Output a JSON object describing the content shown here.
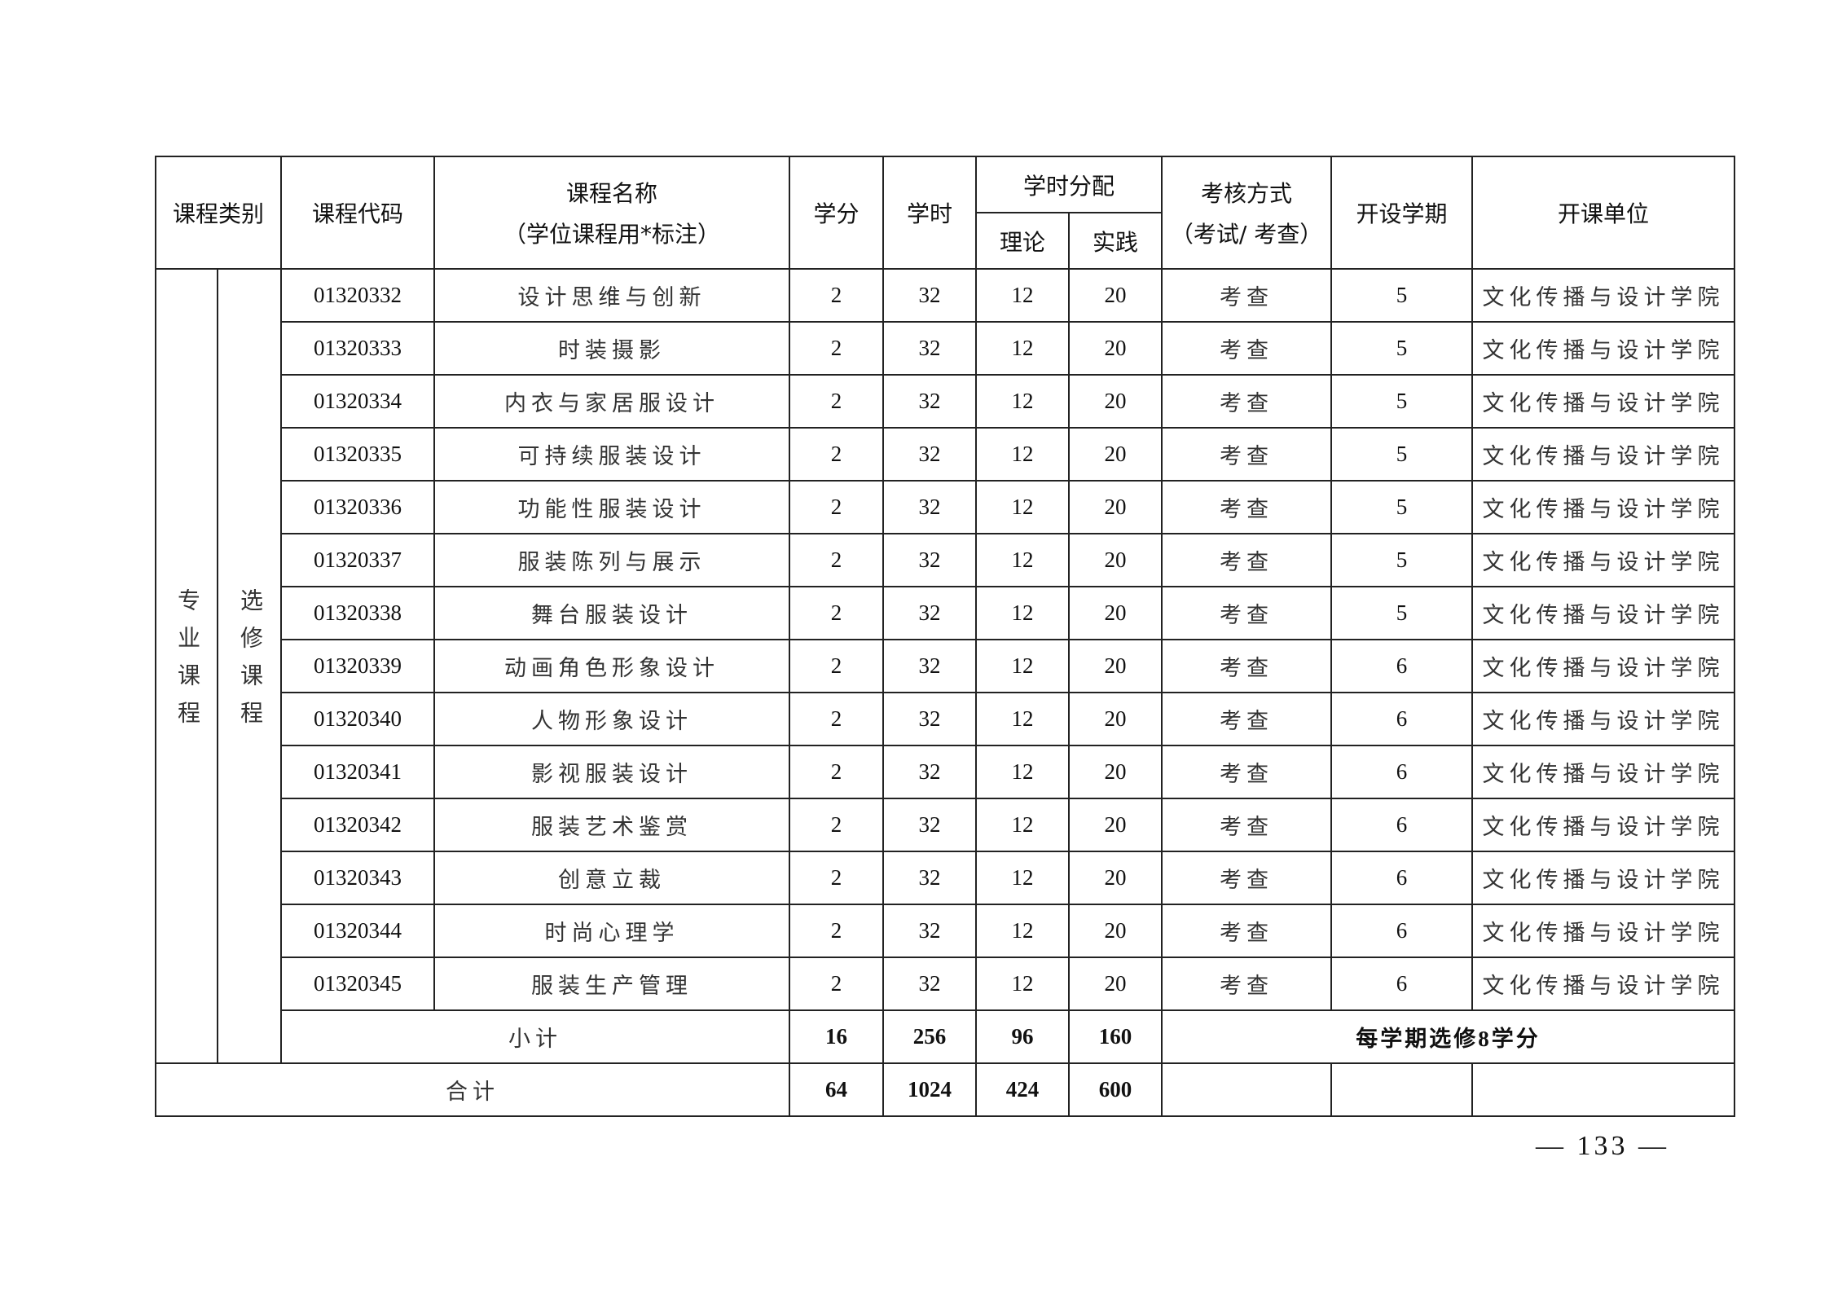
{
  "header": {
    "category": "课程类别",
    "code": "课程代码",
    "name_line1": "课程名称",
    "name_line2": "（学位课程用*标注）",
    "credits": "学分",
    "hours": "学时",
    "hours_split": "学时分配",
    "theory": "理论",
    "practice": "实践",
    "exam_line1": "考核方式",
    "exam_line2": "（考试/ 考查）",
    "semester": "开设学期",
    "unit": "开课单位"
  },
  "category": {
    "main": "专业课程",
    "sub": "选修课程"
  },
  "rows": [
    {
      "code": "01320332",
      "name": "设计思维与创新",
      "credits": "2",
      "hours": "32",
      "theory": "12",
      "practice": "20",
      "exam": "考查",
      "semester": "5",
      "unit": "文化传播与设计学院"
    },
    {
      "code": "01320333",
      "name": "时装摄影",
      "credits": "2",
      "hours": "32",
      "theory": "12",
      "practice": "20",
      "exam": "考查",
      "semester": "5",
      "unit": "文化传播与设计学院"
    },
    {
      "code": "01320334",
      "name": "内衣与家居服设计",
      "credits": "2",
      "hours": "32",
      "theory": "12",
      "practice": "20",
      "exam": "考查",
      "semester": "5",
      "unit": "文化传播与设计学院"
    },
    {
      "code": "01320335",
      "name": "可持续服装设计",
      "credits": "2",
      "hours": "32",
      "theory": "12",
      "practice": "20",
      "exam": "考查",
      "semester": "5",
      "unit": "文化传播与设计学院"
    },
    {
      "code": "01320336",
      "name": "功能性服装设计",
      "credits": "2",
      "hours": "32",
      "theory": "12",
      "practice": "20",
      "exam": "考查",
      "semester": "5",
      "unit": "文化传播与设计学院"
    },
    {
      "code": "01320337",
      "name": "服装陈列与展示",
      "credits": "2",
      "hours": "32",
      "theory": "12",
      "practice": "20",
      "exam": "考查",
      "semester": "5",
      "unit": "文化传播与设计学院"
    },
    {
      "code": "01320338",
      "name": "舞台服装设计",
      "credits": "2",
      "hours": "32",
      "theory": "12",
      "practice": "20",
      "exam": "考查",
      "semester": "5",
      "unit": "文化传播与设计学院"
    },
    {
      "code": "01320339",
      "name": "动画角色形象设计",
      "credits": "2",
      "hours": "32",
      "theory": "12",
      "practice": "20",
      "exam": "考查",
      "semester": "6",
      "unit": "文化传播与设计学院"
    },
    {
      "code": "01320340",
      "name": "人物形象设计",
      "credits": "2",
      "hours": "32",
      "theory": "12",
      "practice": "20",
      "exam": "考查",
      "semester": "6",
      "unit": "文化传播与设计学院"
    },
    {
      "code": "01320341",
      "name": "影视服装设计",
      "credits": "2",
      "hours": "32",
      "theory": "12",
      "practice": "20",
      "exam": "考查",
      "semester": "6",
      "unit": "文化传播与设计学院"
    },
    {
      "code": "01320342",
      "name": "服装艺术鉴赏",
      "credits": "2",
      "hours": "32",
      "theory": "12",
      "practice": "20",
      "exam": "考查",
      "semester": "6",
      "unit": "文化传播与设计学院"
    },
    {
      "code": "01320343",
      "name": "创意立裁",
      "credits": "2",
      "hours": "32",
      "theory": "12",
      "practice": "20",
      "exam": "考查",
      "semester": "6",
      "unit": "文化传播与设计学院"
    },
    {
      "code": "01320344",
      "name": "时尚心理学",
      "credits": "2",
      "hours": "32",
      "theory": "12",
      "practice": "20",
      "exam": "考查",
      "semester": "6",
      "unit": "文化传播与设计学院"
    },
    {
      "code": "01320345",
      "name": "服装生产管理",
      "credits": "2",
      "hours": "32",
      "theory": "12",
      "practice": "20",
      "exam": "考查",
      "semester": "6",
      "unit": "文化传播与设计学院"
    }
  ],
  "subtotal": {
    "label": "小计",
    "credits": "16",
    "hours": "256",
    "theory": "96",
    "practice": "160",
    "note": "每学期选修8学分"
  },
  "total": {
    "label": "合计",
    "credits": "64",
    "hours": "1024",
    "theory": "424",
    "practice": "600"
  },
  "page_number": "— 133 —"
}
